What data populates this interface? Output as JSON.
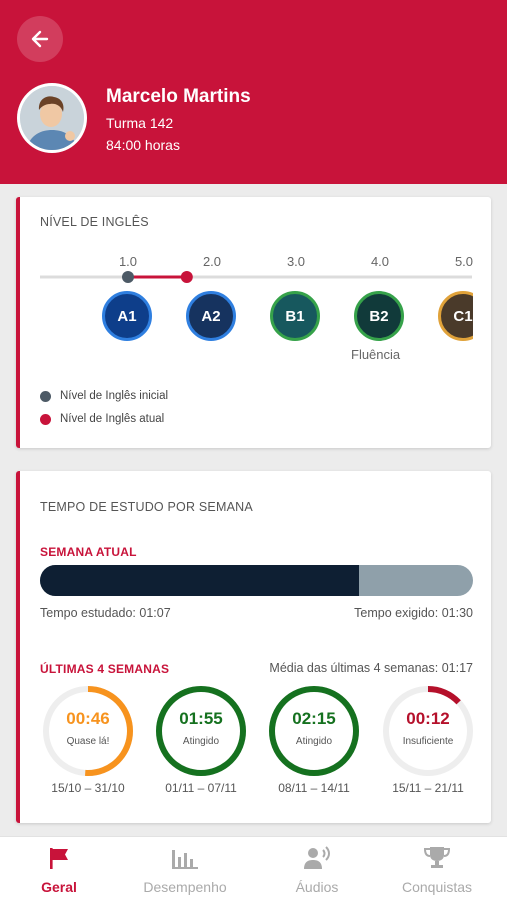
{
  "colors": {
    "brand": "#c8133a",
    "dark_navy": "#0e1f33",
    "orange": "#f7931e",
    "green": "#15711f"
  },
  "header": {
    "back_icon": "arrow-left-icon",
    "name": "Marcelo Martins",
    "class": "Turma 142",
    "hours": "84:00 horas"
  },
  "level_card": {
    "title": "NÍVEL DE INGLÊS",
    "scale": [
      "1.0",
      "2.0",
      "3.0",
      "4.0",
      "5.0"
    ],
    "initial_level": 1.0,
    "current_level": 1.7,
    "levels": [
      {
        "label": "A1",
        "color": "#0e3e8a",
        "border": "#2f7fe0"
      },
      {
        "label": "A2",
        "color": "#16335f",
        "border": "#2f7fe0"
      },
      {
        "label": "B1",
        "color": "#17585e",
        "border": "#36a24a"
      },
      {
        "label": "B2",
        "color": "#113a3a",
        "border": "#36a24a"
      },
      {
        "label": "C1",
        "color": "#4a3a2a",
        "border": "#e0a23a"
      }
    ],
    "fluency_label": "Fluência",
    "legend": [
      {
        "label": "Nível de Inglês inicial",
        "color": "#4d5a66"
      },
      {
        "label": "Nível de Inglês atual",
        "color": "#c8133a"
      }
    ]
  },
  "study_card": {
    "title": "TEMPO DE ESTUDO POR SEMANA",
    "current_week_label": "SEMANA ATUAL",
    "progress_fraction": 0.737,
    "studied_text": "Tempo estudado: 01:07",
    "required_text": "Tempo exigido: 01:30",
    "last_weeks_label": "ÚLTIMAS 4 SEMANAS",
    "average_text": "Média das últimas 4 semanas: 01:17",
    "weeks": [
      {
        "time": "00:46",
        "status": "Quase lá!",
        "range": "15/10 – 31/10",
        "fraction": 0.51,
        "color": "#f7931e"
      },
      {
        "time": "01:55",
        "status": "Atingido",
        "range": "01/11 – 07/11",
        "fraction": 1.0,
        "color": "#15711f"
      },
      {
        "time": "02:15",
        "status": "Atingido",
        "range": "08/11 – 14/11",
        "fraction": 1.0,
        "color": "#15711f"
      },
      {
        "time": "00:12",
        "status": "Insuficiente",
        "range": "15/11 – 21/11",
        "fraction": 0.13,
        "color": "#b5102b"
      }
    ]
  },
  "nav": {
    "items": [
      {
        "label": "Geral",
        "icon": "flag-icon",
        "active": true
      },
      {
        "label": "Desempenho",
        "icon": "bar-chart-icon",
        "active": false
      },
      {
        "label": "Áudios",
        "icon": "speaker-person-icon",
        "active": false
      },
      {
        "label": "Conquistas",
        "icon": "trophy-icon",
        "active": false
      }
    ]
  }
}
